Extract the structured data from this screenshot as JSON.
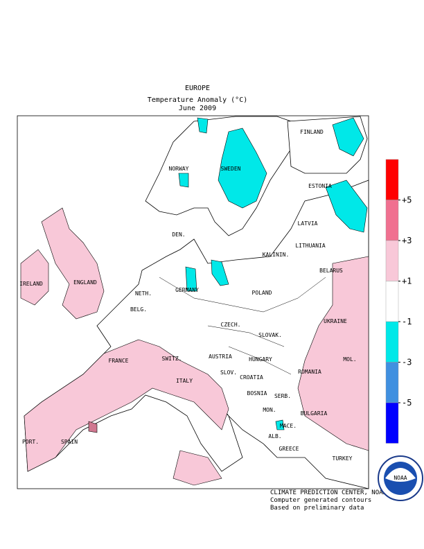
{
  "title": {
    "region": "EUROPE",
    "variable": "Temperature Anomaly (°C)",
    "period": "June 2009"
  },
  "map": {
    "labels": [
      "FINLAND",
      "NORWAY",
      "SWEDEN",
      "ESTONIA",
      "LATVIA",
      "DEN.",
      "LITHUANIA",
      "KALININ.",
      "IRELAND",
      "ENGLAND",
      "BELARUS",
      "NETH.",
      "GERMANY",
      "POLAND",
      "BELG.",
      "UKRAINE",
      "CZECH.",
      "SLOVAK.",
      "FRANCE",
      "SWITZ.",
      "AUSTRIA",
      "HUNGARY",
      "MOL.",
      "ROMANIA",
      "SLOV.",
      "CROATIA",
      "ITALY",
      "BOSNIA",
      "SERB.",
      "BULGARIA",
      "MON.",
      "MACE.",
      "PORT.",
      "SPAIN",
      "ALB.",
      "GREECE",
      "TURKEY"
    ]
  },
  "legend": {
    "colors": [
      "#ff0000",
      "#f07090",
      "#f8c8d8",
      "#ffffff",
      "#00e8e8",
      "#4090e0",
      "#0000ff"
    ],
    "ticks": [
      {
        "value": 5,
        "label": "+5"
      },
      {
        "value": 3,
        "label": "+3"
      },
      {
        "value": 1,
        "label": "+1"
      },
      {
        "value": -1,
        "label": "-1"
      },
      {
        "value": -3,
        "label": "-3"
      },
      {
        "value": -5,
        "label": "-5"
      }
    ]
  },
  "credits": [
    "CLIMATE PREDICTION CENTER, NOAA",
    "Computer generated contours",
    "Based on preliminary data"
  ],
  "logo": "NOAA"
}
